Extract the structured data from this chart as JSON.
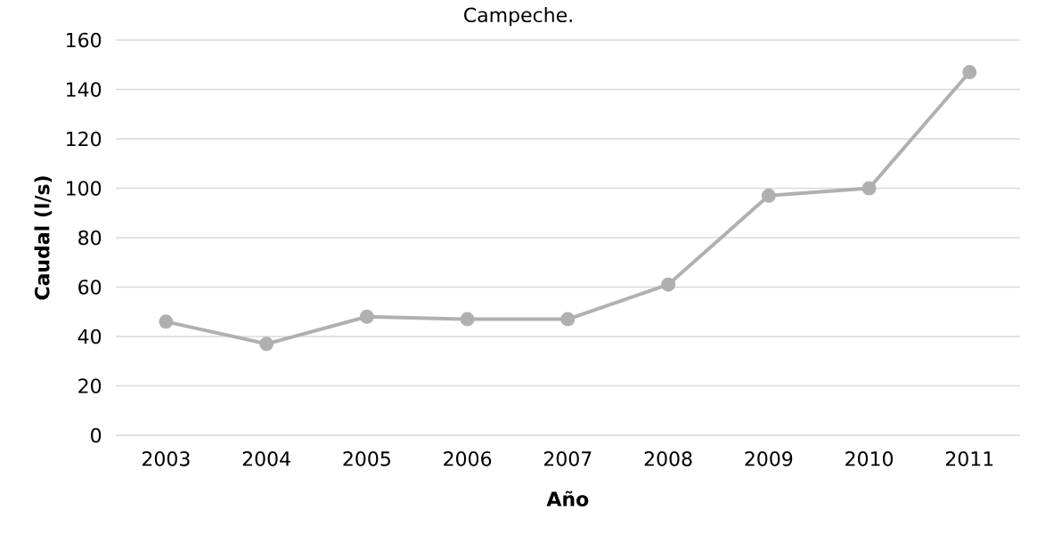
{
  "chart_data": {
    "type": "line",
    "title": "Campeche.",
    "xlabel": "Año",
    "ylabel": "Caudal (l/s)",
    "categories": [
      "2003",
      "2004",
      "2005",
      "2006",
      "2007",
      "2008",
      "2009",
      "2010",
      "2011"
    ],
    "values": [
      46,
      37,
      48,
      47,
      47,
      61,
      97,
      100,
      147
    ],
    "color": "#b0b0b0",
    "ylim": [
      0,
      160
    ],
    "yticks": [
      0,
      20,
      40,
      60,
      80,
      100,
      120,
      140,
      160
    ],
    "grid": "y",
    "marker": "circle",
    "line_style": "solid"
  }
}
